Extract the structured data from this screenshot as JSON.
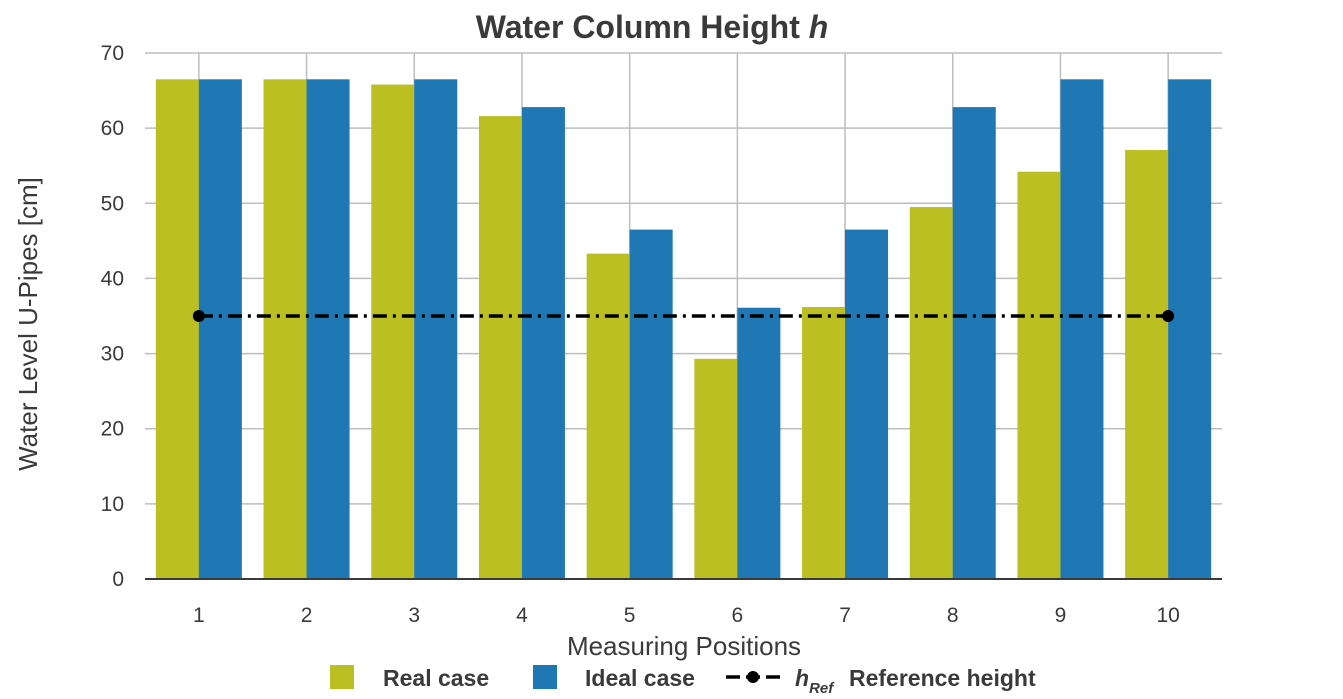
{
  "chart_data": {
    "type": "bar",
    "title": "Water Column Height",
    "title_symbol": "h",
    "xlabel": "Measuring Positions",
    "ylabel": "Water Level U-Pipes [cm]",
    "categories": [
      "1",
      "2",
      "3",
      "4",
      "5",
      "6",
      "7",
      "8",
      "9",
      "10"
    ],
    "ylim": [
      0,
      70
    ],
    "yticks": [
      0,
      10,
      20,
      30,
      40,
      50,
      60,
      70
    ],
    "grid": true,
    "legend_placement": "bottom",
    "series": [
      {
        "name": "Real case",
        "color": "#bbbf22",
        "values": [
          66.5,
          66.5,
          65.8,
          61.6,
          43.3,
          29.3,
          36.2,
          49.5,
          54.2,
          57.1
        ]
      },
      {
        "name": "Ideal case",
        "color": "#1f77b4",
        "values": [
          66.5,
          66.5,
          66.5,
          62.8,
          46.5,
          36.1,
          46.5,
          62.8,
          66.5,
          66.5
        ]
      }
    ],
    "reference_line": {
      "symbol": "h",
      "subscript": "Ref",
      "name": "Reference height",
      "value": 35,
      "x_start": "1",
      "x_end": "10",
      "color": "#000000",
      "style": "dash-dot"
    }
  }
}
